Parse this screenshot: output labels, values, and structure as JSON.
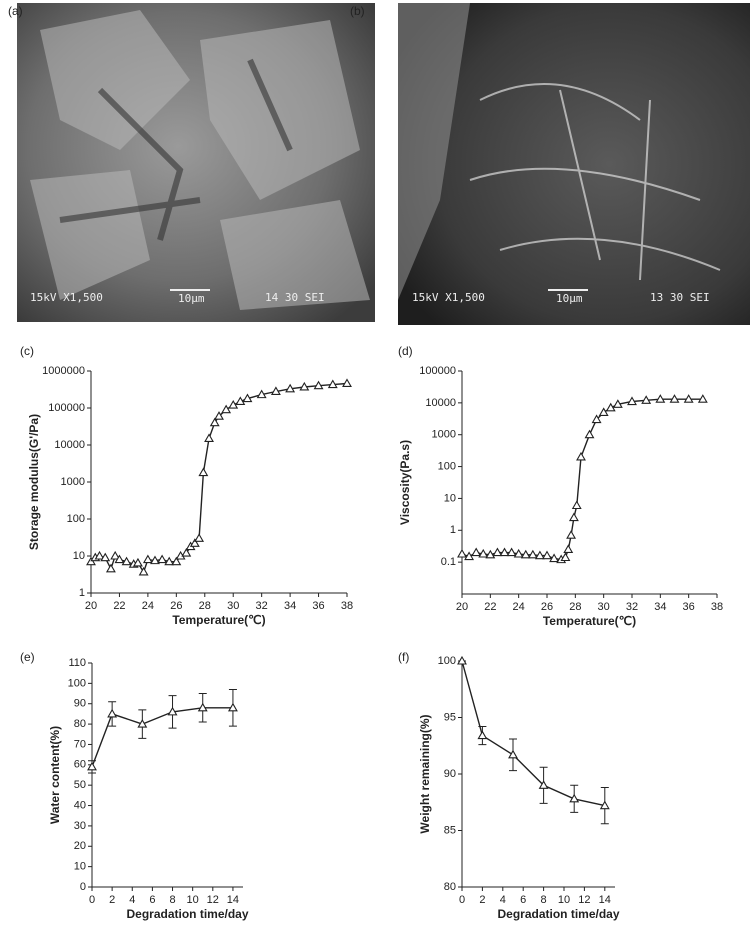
{
  "images": [
    {
      "panel_label": "(a)",
      "caption_left": "15kV  X1,500",
      "scale": "10μm",
      "caption_right": "14 30 SEI"
    },
    {
      "panel_label": "(b)",
      "caption_left": "15kV  X1,500",
      "scale": "10μm",
      "caption_right": "13 30 SEI"
    }
  ],
  "chart_data": [
    {
      "type": "line",
      "panel_label": "(c)",
      "x_label": "Temperature(℃)",
      "y_label": "Storage modulus(G'/Pa)",
      "log_y": true,
      "marker": "triangle",
      "color": "#222222",
      "x": [
        20,
        20.3,
        20.6,
        21,
        21.4,
        21.7,
        22,
        22.5,
        23,
        23.3,
        23.7,
        24,
        24.5,
        25,
        25.5,
        26,
        26.3,
        26.7,
        27,
        27.3,
        27.6,
        27.9,
        28.3,
        28.7,
        29,
        29.5,
        30,
        30.5,
        31,
        32,
        33,
        34,
        35,
        36,
        37,
        38
      ],
      "values": [
        7,
        9,
        10,
        9,
        4.5,
        10,
        8,
        7,
        6,
        6.5,
        3.7,
        8,
        7.5,
        8,
        7,
        7,
        10,
        12,
        18,
        22,
        30,
        1800,
        15000,
        40000,
        60000,
        90000,
        120000,
        150000,
        180000,
        230000,
        280000,
        330000,
        370000,
        400000,
        430000,
        460000
      ],
      "xlim": [
        20,
        38
      ],
      "xticks": [
        20,
        22,
        24,
        26,
        28,
        30,
        32,
        34,
        36,
        38
      ],
      "ylim": [
        1,
        1000000
      ],
      "yticks": [
        1,
        10,
        100,
        1000,
        10000,
        100000,
        1000000
      ]
    },
    {
      "type": "line",
      "panel_label": "(d)",
      "x_label": "Temperature(℃)",
      "y_label": "Viscosity(Pa.s)",
      "log_y": true,
      "marker": "triangle",
      "color": "#222222",
      "x": [
        20,
        20.5,
        21,
        21.5,
        22,
        22.5,
        23,
        23.5,
        24,
        24.5,
        25,
        25.5,
        26,
        26.5,
        27,
        27.3,
        27.5,
        27.7,
        27.9,
        28.1,
        28.4,
        29,
        29.5,
        30,
        30.5,
        31,
        32,
        33,
        34,
        35,
        36,
        37
      ],
      "values": [
        0.18,
        0.15,
        0.2,
        0.18,
        0.17,
        0.2,
        0.2,
        0.2,
        0.18,
        0.17,
        0.17,
        0.16,
        0.16,
        0.13,
        0.12,
        0.14,
        0.25,
        0.7,
        2.5,
        6,
        200,
        1000,
        3000,
        5000,
        7000,
        9000,
        11000,
        12000,
        13000,
        13000,
        13000,
        13000
      ],
      "xlim": [
        20,
        38
      ],
      "xticks": [
        20,
        22,
        24,
        26,
        28,
        30,
        32,
        34,
        36,
        38
      ],
      "ylim": [
        0.01,
        100000
      ],
      "yticks": [
        0.1,
        1,
        10,
        100,
        1000,
        10000,
        100000
      ]
    },
    {
      "type": "line",
      "panel_label": "(e)",
      "x_label": "Degradation time/day",
      "y_label": "Water content(%)",
      "log_y": false,
      "marker": "triangle",
      "color": "#222222",
      "x": [
        0,
        2,
        5,
        8,
        11,
        14
      ],
      "values": [
        59,
        85,
        80,
        86,
        88,
        88
      ],
      "errors": [
        3,
        6,
        7,
        8,
        7,
        9
      ],
      "xlim": [
        0,
        15
      ],
      "xticks": [
        0,
        2,
        4,
        6,
        8,
        10,
        12,
        14
      ],
      "ylim": [
        0,
        110
      ],
      "yticks": [
        0,
        10,
        20,
        30,
        40,
        50,
        60,
        70,
        80,
        90,
        100,
        110
      ]
    },
    {
      "type": "line",
      "panel_label": "(f)",
      "x_label": "Degradation time/day",
      "y_label": "Weight remaining(%)",
      "log_y": false,
      "marker": "triangle",
      "color": "#222222",
      "x": [
        0,
        2,
        5,
        8,
        11,
        14
      ],
      "values": [
        100,
        93.4,
        91.7,
        89,
        87.8,
        87.2
      ],
      "errors": [
        0,
        0.8,
        1.4,
        1.6,
        1.2,
        1.6
      ],
      "xlim": [
        0,
        15
      ],
      "xticks": [
        0,
        2,
        4,
        6,
        8,
        10,
        12,
        14
      ],
      "ylim": [
        80,
        100
      ],
      "yticks": [
        80,
        85,
        90,
        95,
        100
      ]
    }
  ]
}
